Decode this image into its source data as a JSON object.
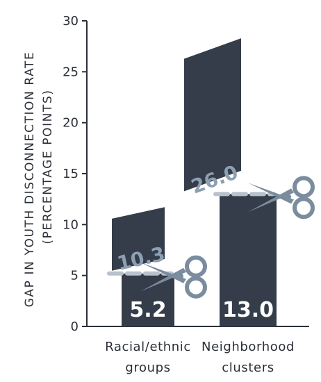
{
  "chart_data": {
    "type": "bar",
    "ylabel_line1": "GAP IN YOUTH DISCONNECTION RATE",
    "ylabel_line2": "(PERCENTAGE POINTS)",
    "ylim": [
      0,
      30
    ],
    "yticks": [
      "0",
      "5",
      "10",
      "15",
      "20",
      "25",
      "30"
    ],
    "categories": [
      {
        "line1": "Racial/ethnic",
        "line2": "groups"
      },
      {
        "line1": "Neighborhood",
        "line2": "clusters"
      }
    ],
    "values": [
      5.2,
      13.0
    ],
    "value_labels": [
      "5.2",
      "13.0"
    ],
    "cut_off_values": [
      10.3,
      26.0
    ],
    "cut_off_labels": [
      "10.3",
      "26.0"
    ],
    "colors": {
      "bar": "#343d49",
      "axis": "#2a2f36",
      "cut_label": "#8d9fb2",
      "cut_line": "#b8c2cc",
      "scissors": "#7a8c9e"
    }
  }
}
